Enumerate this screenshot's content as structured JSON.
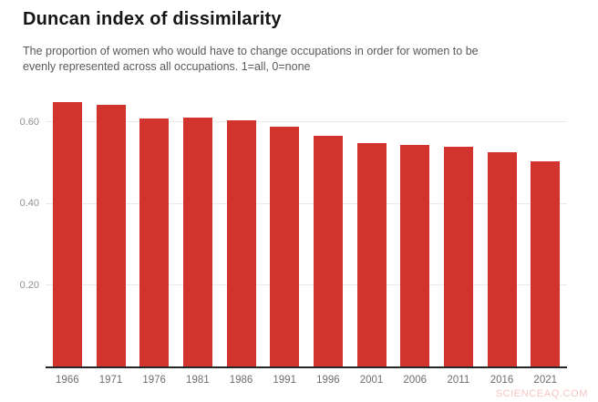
{
  "title": "Duncan index of dissimilarity",
  "subtitle": {
    "line1": "The proportion of women who would have to change occupations in order for women to be",
    "line2": "evenly represented across all occupations. 1=all, 0=none"
  },
  "watermark": "SCIENCEAQ.COM",
  "colors": {
    "bar": "#d0342c",
    "gridline": "#e8e8e8",
    "axis": "#262626",
    "title_text": "#151515",
    "subtitle_text": "#595959",
    "y_tick_text": "#909090",
    "x_tick_text": "#6e6e6e",
    "watermark_text": "#f5c4c4",
    "background": "#ffffff"
  },
  "chart_data": {
    "type": "bar",
    "title": "Duncan index of dissimilarity",
    "subtitle": "The proportion of women who would have to change occupations in order for women to be evenly represented across all occupations. 1=all, 0=none",
    "categories": [
      "1966",
      "1971",
      "1976",
      "1981",
      "1986",
      "1991",
      "1996",
      "2001",
      "2006",
      "2011",
      "2016",
      "2021"
    ],
    "values": [
      0.648,
      0.643,
      0.608,
      0.611,
      0.603,
      0.589,
      0.566,
      0.548,
      0.543,
      0.539,
      0.526,
      0.504
    ],
    "xlabel": "",
    "ylabel": "",
    "ylim": [
      0,
      0.671
    ],
    "yticks": [
      {
        "value": 0.2,
        "label": "0.20"
      },
      {
        "value": 0.4,
        "label": "0.40"
      },
      {
        "value": 0.6,
        "label": "0.60"
      }
    ],
    "grid": true,
    "legend": false,
    "bar_color": "#d0342c"
  }
}
